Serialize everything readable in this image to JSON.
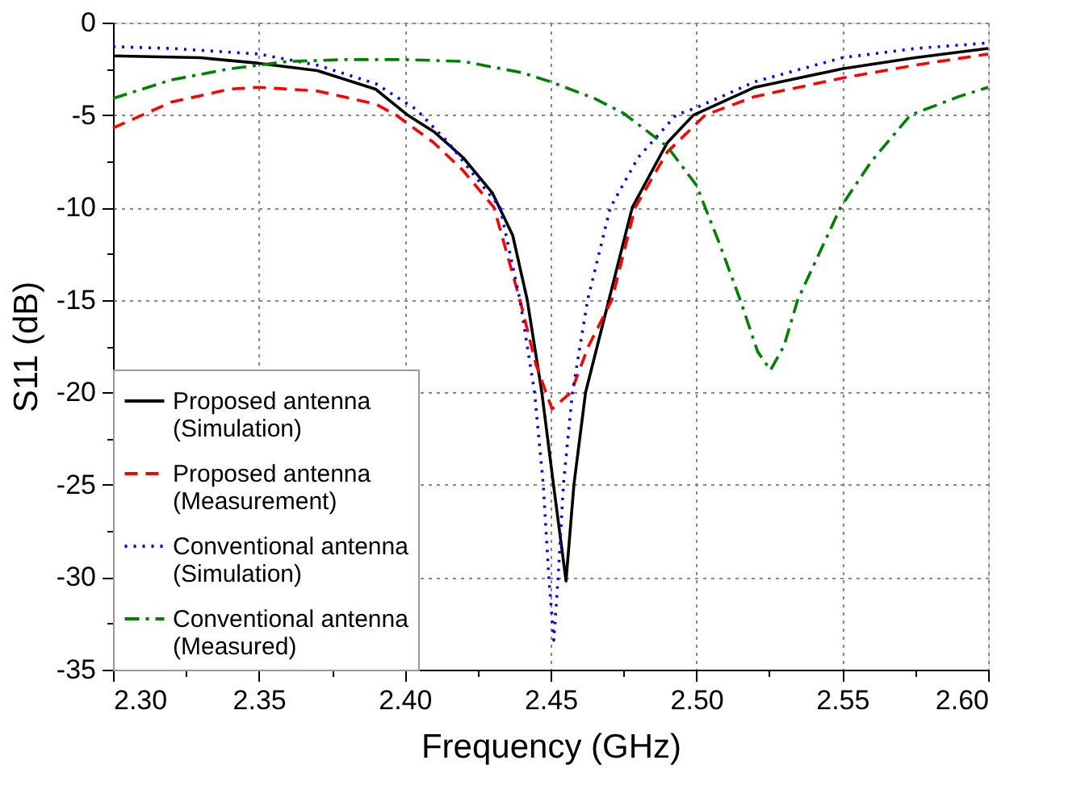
{
  "chart_data": {
    "type": "line",
    "xlabel": "Frequency (GHz)",
    "ylabel": "S11 (dB)",
    "xlim": [
      2.3,
      2.6
    ],
    "ylim": [
      -35,
      0
    ],
    "xticks": [
      {
        "value": 2.3,
        "label": "2.30"
      },
      {
        "value": 2.325,
        "label": null
      },
      {
        "value": 2.35,
        "label": "2.35"
      },
      {
        "value": 2.375,
        "label": null
      },
      {
        "value": 2.4,
        "label": "2.40"
      },
      {
        "value": 2.425,
        "label": null
      },
      {
        "value": 2.45,
        "label": "2.45"
      },
      {
        "value": 2.475,
        "label": null
      },
      {
        "value": 2.5,
        "label": "2.50"
      },
      {
        "value": 2.525,
        "label": null
      },
      {
        "value": 2.55,
        "label": "2.55"
      },
      {
        "value": 2.575,
        "label": null
      },
      {
        "value": 2.6,
        "label": "2.60"
      }
    ],
    "yticks": [
      -35,
      {
        "value": -32.5,
        "label": null
      },
      -30,
      {
        "value": -27.5,
        "label": null
      },
      -25,
      {
        "value": -22.5,
        "label": null
      },
      -20,
      {
        "value": -17.5,
        "label": null
      },
      -15,
      {
        "value": -12.5,
        "label": null
      },
      -10,
      {
        "value": -7.5,
        "label": null
      },
      -5,
      {
        "value": -2.5,
        "label": null
      },
      0
    ],
    "grid": true,
    "legend": "bottom left",
    "marker": "none",
    "series": [
      {
        "name": "Proposed antenna\n(Simulation)",
        "color": "#000000",
        "line_style": "solid",
        "x": [
          2.3,
          2.33,
          2.35,
          2.37,
          2.39,
          2.401,
          2.41,
          2.42,
          2.43,
          2.437,
          2.442,
          2.447,
          2.451,
          2.4553,
          2.458,
          2.462,
          2.47,
          2.478,
          2.49,
          2.499,
          2.52,
          2.55,
          2.575,
          2.6
        ],
        "values": [
          -1.8,
          -1.9,
          -2.2,
          -2.6,
          -3.6,
          -5,
          -5.9,
          -7.3,
          -9.2,
          -11.5,
          -15,
          -20,
          -25,
          -30.2,
          -25,
          -20,
          -15,
          -10,
          -6.5,
          -5,
          -3.5,
          -2.5,
          -1.9,
          -1.4
        ]
      },
      {
        "name": "Proposed antenna\n(Measurement)",
        "color": "#ff0000",
        "line_style": "dashed",
        "x": [
          2.3,
          2.32,
          2.34,
          2.35,
          2.37,
          2.39,
          2.397,
          2.41,
          2.42,
          2.4306,
          2.4395,
          2.445,
          2.4505,
          2.457,
          2.463,
          2.471,
          2.479,
          2.49,
          2.503,
          2.52,
          2.55,
          2.575,
          2.6
        ],
        "values": [
          -5.7,
          -4.3,
          -3.6,
          -3.5,
          -3.7,
          -4.4,
          -5,
          -6.5,
          -8,
          -10,
          -15,
          -18.5,
          -20.9,
          -20,
          -17.5,
          -15,
          -10,
          -7,
          -5,
          -4,
          -3,
          -2.3,
          -1.7
        ]
      },
      {
        "name": "Conventional antenna\n(Simulation)",
        "color": "#0000ff",
        "line_style": "dotted",
        "x": [
          2.3,
          2.32,
          2.35,
          2.37,
          2.39,
          2.404,
          2.415,
          2.425,
          2.4327,
          2.4395,
          2.4445,
          2.4475,
          2.4494,
          2.4511,
          2.4526,
          2.4544,
          2.4575,
          2.4627,
          2.4705,
          2.48,
          2.493,
          2.5,
          2.52,
          2.55,
          2.575,
          2.6
        ],
        "values": [
          -1.3,
          -1.4,
          -1.7,
          -2.3,
          -3.3,
          -4.7,
          -6.5,
          -8.5,
          -10,
          -15,
          -20,
          -25,
          -30,
          -33.4,
          -30,
          -25,
          -20,
          -15,
          -10,
          -7.3,
          -5,
          -4.6,
          -3.2,
          -1.9,
          -1.4,
          -1.1
        ]
      },
      {
        "name": "Conventional antenna\n(Measured)",
        "color": "#008000",
        "line_style": "dashdot",
        "x": [
          2.3,
          2.32,
          2.34,
          2.36,
          2.38,
          2.4,
          2.42,
          2.44,
          2.45,
          2.465,
          2.475,
          2.49,
          2.5,
          2.508,
          2.515,
          2.521,
          2.5254,
          2.53,
          2.5347,
          2.5494,
          2.56,
          2.5734,
          2.59,
          2.6
        ],
        "values": [
          -4.1,
          -3.1,
          -2.5,
          -2.1,
          -2.0,
          -2.0,
          -2.1,
          -2.7,
          -3.2,
          -4.1,
          -4.9,
          -6.7,
          -8.8,
          -12,
          -15,
          -17.8,
          -18.8,
          -17.5,
          -15,
          -10,
          -7.5,
          -5,
          -4,
          -3.5
        ]
      }
    ]
  }
}
